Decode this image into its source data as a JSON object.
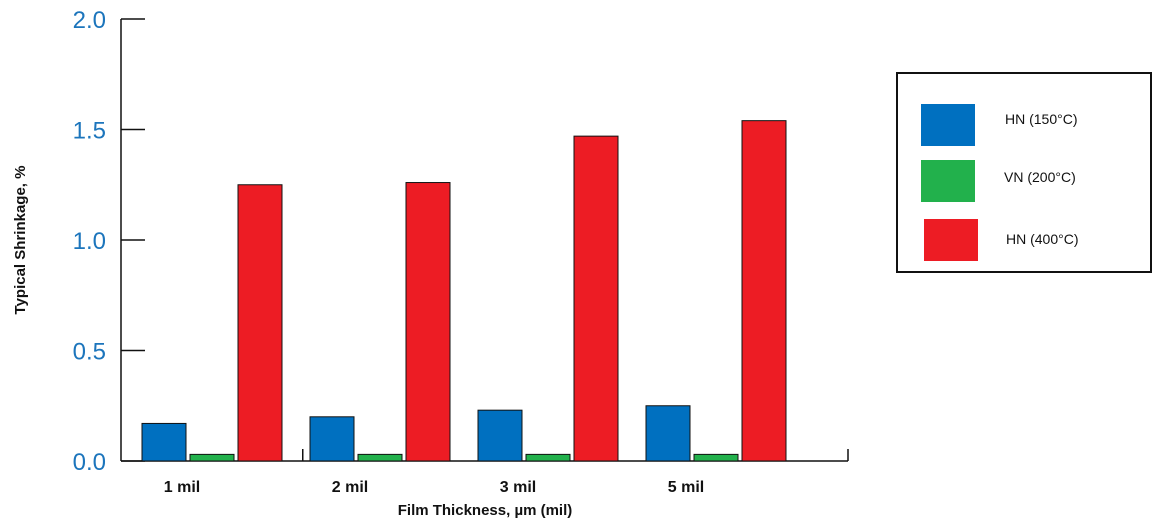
{
  "chart_data": {
    "type": "bar",
    "title": "",
    "xlabel": "Film Thickness, µm (mil)",
    "ylabel": "Typical Shrinkage, %",
    "categories": [
      "1 mil",
      "2 mil",
      "3 mil",
      "5 mil"
    ],
    "series": [
      {
        "name": "HN (150°C)",
        "color": "#0070c0",
        "values": [
          0.17,
          0.2,
          0.23,
          0.25
        ]
      },
      {
        "name": "VN (200°C)",
        "color": "#22b14c",
        "values": [
          0.03,
          0.03,
          0.03,
          0.03
        ]
      },
      {
        "name": "HN (400°C)",
        "color": "#ed1c24",
        "values": [
          1.25,
          1.26,
          1.47,
          1.54
        ]
      }
    ],
    "ylim": [
      0,
      2.0
    ],
    "yticks": [
      "0.0",
      "0.5",
      "1.0",
      "1.5",
      "2.0"
    ],
    "grid": false,
    "legend_position": "right"
  }
}
